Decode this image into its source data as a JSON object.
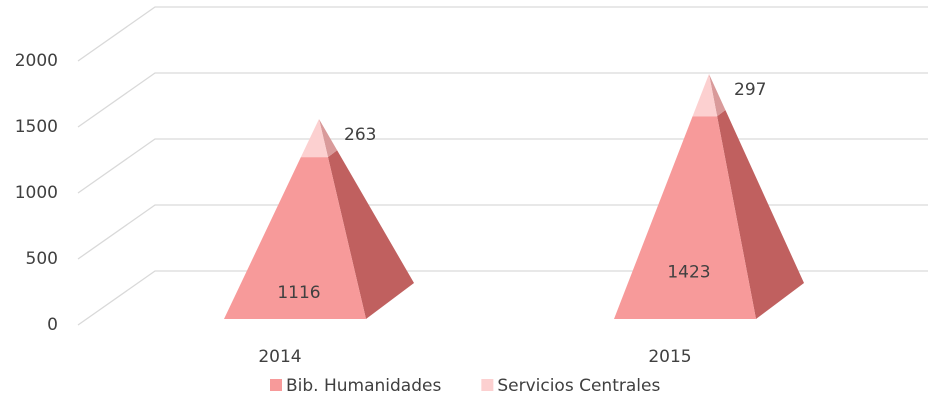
{
  "chart_data": {
    "type": "pyramid",
    "categories": [
      "2014",
      "2015"
    ],
    "series": [
      {
        "name": "Bib. Humanidades",
        "color": "#f79a9a",
        "side_color": "#c0605f",
        "values": [
          1116,
          1423
        ]
      },
      {
        "name": "Servicios Centrales",
        "color": "#fcd0d0",
        "side_color": "#d99a9a",
        "values": [
          263,
          297
        ]
      }
    ],
    "ylim": [
      0,
      2000
    ],
    "yticks": [
      0,
      500,
      1000,
      1500,
      2000
    ],
    "grid": true,
    "stacked": true,
    "legend": "bottom"
  }
}
